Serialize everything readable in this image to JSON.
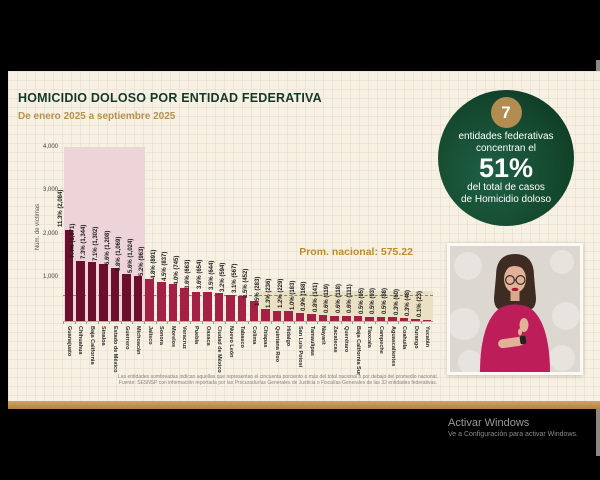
{
  "slide": {
    "title": "HOMICIDIO DOLOSO POR ENTIDAD FEDERATIVA",
    "subtitle": "De enero 2025 a septiembre 2025"
  },
  "badge": {
    "number": "7",
    "line1": "entidades federativas",
    "line2": "concentran el",
    "percent": "51%",
    "line3": "del total de casos",
    "line4": "de Homicidio doloso"
  },
  "chart_data": {
    "type": "bar",
    "title": "Homicidio doloso por entidad federativa, enero 2025 a septiembre 2025",
    "ylabel": "Núm. de víctimas",
    "yticks": [
      "4,000",
      "3,000",
      "2,000",
      "1,000"
    ],
    "ylim": [
      0,
      4000
    ],
    "grid": false,
    "avg_label": "Prom. nacional: 575.22",
    "avg_value": 575.22,
    "categories": [
      "Guanajuato",
      "Chihuahua",
      "Baja California",
      "Sinaloa",
      "Estado de México",
      "Guerrero",
      "Michoacán",
      "Jalisco",
      "Sonora",
      "Morelos",
      "Veracruz",
      "Puebla",
      "Oaxaca",
      "Ciudad de México",
      "Nuevo León",
      "Tabasco",
      "Colima",
      "Chiapas",
      "Quintana Roo",
      "Hidalgo",
      "San Luis Potosí",
      "Tamaulipas",
      "Nayarit",
      "Zacatecas",
      "Querétaro",
      "Baja California Sur",
      "Tlaxcala",
      "Campeche",
      "Aguascalientes",
      "Coahuila",
      "Durango",
      "Yucatán"
    ],
    "values": [
      2084,
      1371,
      1344,
      1302,
      1208,
      1069,
      1024,
      963,
      891,
      837,
      745,
      663,
      654,
      644,
      594,
      567,
      452,
      283,
      236,
      229,
      183,
      168,
      141,
      119,
      118,
      111,
      95,
      93,
      88,
      60,
      48,
      23
    ],
    "bar_labels": [
      "11.3% (2,084)",
      "7.4% (1,371)",
      "7.3% (1,344)",
      "7.1% (1,302)",
      "6.6% (1,208)",
      "5.8% (1,069)",
      "5.6% (1,024)",
      "5.2% (963)",
      "4.8% (891)",
      "4.5% (837)",
      "4.0% (745)",
      "3.6% (663)",
      "3.6% (654)",
      "3.5% (644)",
      "3.2% (594)",
      "3.1% (567)",
      "2.5% (452)",
      "1.5% (283)",
      "1.3% (236)",
      "1.2% (229)",
      "1.0% (183)",
      "0.9% (168)",
      "0.8% (141)",
      "0.6% (119)",
      "0.6% (118)",
      "0.6% (111)",
      "0.5% (95)",
      "0.5% (93)",
      "0.5% (88)",
      "0.3% (60)",
      "0.3% (48)",
      "0.1% (23)"
    ],
    "highlight_top_count": 7,
    "below_avg_start_index": 17,
    "colors": {
      "highlight_bar": "#6b0f2d",
      "bar": "#a52045",
      "highlight_bg": "#ecd4d9",
      "below_avg_bg": "#eae0c4",
      "title_green": "#14382a",
      "accent_gold": "#b6924e"
    },
    "legend_position": "none"
  },
  "footnote": {
    "line1": "Las entidades sombreadas indican aquellas que representan el cincuenta porciento o más del total nacional o por debajo del promedio nacional.",
    "line2": "Fuente: SESNSP con información reportada por las Procuradurías Generales de Justicia o Fiscalías Generales de las 32 entidades federativas."
  },
  "watermark": {
    "line1": "Activar Windows",
    "line2": "Ve a Configuración para activar Windows."
  }
}
